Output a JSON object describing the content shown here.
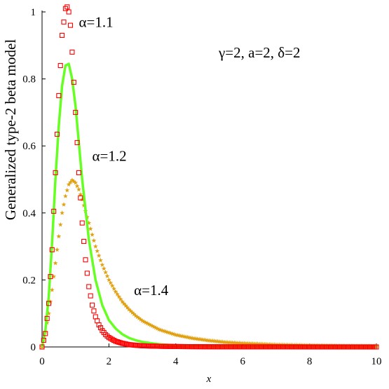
{
  "chart_data": {
    "type": "line",
    "title": "",
    "xlabel": "x",
    "ylabel": "Generalized type-2 beta model",
    "xlim": [
      0,
      10
    ],
    "ylim": [
      0,
      1
    ],
    "xticks": [
      0,
      2,
      4,
      6,
      8,
      10
    ],
    "yticks": [
      0,
      0.2,
      0.4,
      0.6,
      0.8,
      1
    ],
    "grid": false,
    "legend": "none",
    "parameter_note": "γ=2, a=2, δ=2",
    "colors": {
      "alpha_1_1": "#ff0000",
      "alpha_1_2": "#66ff22",
      "alpha_1_4": "#e0a010"
    },
    "series": [
      {
        "name": "α=1.1",
        "style": "square-markers",
        "x": [
          0,
          0.1,
          0.2,
          0.3,
          0.4,
          0.5,
          0.6,
          0.7,
          0.75,
          0.8,
          0.85,
          0.9,
          1.0,
          1.1,
          1.2,
          1.3,
          1.4,
          1.5,
          1.6,
          1.7,
          1.8,
          1.9,
          2.0,
          2.2,
          2.4,
          2.6,
          2.8,
          3.0,
          3.5,
          4.0,
          5.0,
          6.0,
          8.0,
          10.0
        ],
        "values": [
          0,
          0.04,
          0.13,
          0.29,
          0.52,
          0.75,
          0.93,
          1.01,
          1.015,
          1.0,
          0.96,
          0.88,
          0.7,
          0.52,
          0.37,
          0.26,
          0.18,
          0.125,
          0.09,
          0.066,
          0.049,
          0.037,
          0.028,
          0.017,
          0.011,
          0.007,
          0.005,
          0.0035,
          0.002,
          0.0012,
          0.0005,
          0.0002,
          5e-05,
          1e-05
        ]
      },
      {
        "name": "α=1.2",
        "style": "solid-line",
        "x": [
          0,
          0.1,
          0.2,
          0.3,
          0.4,
          0.5,
          0.6,
          0.7,
          0.8,
          0.9,
          1.0,
          1.1,
          1.2,
          1.4,
          1.6,
          1.8,
          2.0,
          2.2,
          2.4,
          2.6,
          2.8,
          3.0,
          3.5,
          4.0,
          5.0,
          6.0,
          8.0,
          10.0
        ],
        "values": [
          0,
          0.05,
          0.15,
          0.31,
          0.5,
          0.66,
          0.78,
          0.84,
          0.845,
          0.8,
          0.72,
          0.61,
          0.5,
          0.32,
          0.2,
          0.125,
          0.08,
          0.055,
          0.038,
          0.027,
          0.02,
          0.015,
          0.008,
          0.0045,
          0.0018,
          0.0008,
          0.0002,
          5e-05
        ]
      },
      {
        "name": "α=1.4",
        "style": "star-markers",
        "x": [
          0,
          0.1,
          0.2,
          0.3,
          0.4,
          0.5,
          0.6,
          0.7,
          0.8,
          0.9,
          1.0,
          1.1,
          1.2,
          1.3,
          1.4,
          1.5,
          1.6,
          1.8,
          2.0,
          2.2,
          2.4,
          2.6,
          2.8,
          3.0,
          3.5,
          4.0,
          4.5,
          5.0,
          5.5,
          6.0,
          7.0,
          8.0,
          9.0,
          10.0
        ],
        "values": [
          0,
          0.045,
          0.1,
          0.17,
          0.25,
          0.33,
          0.4,
          0.45,
          0.485,
          0.498,
          0.49,
          0.47,
          0.44,
          0.405,
          0.37,
          0.335,
          0.3,
          0.245,
          0.2,
          0.165,
          0.135,
          0.112,
          0.093,
          0.078,
          0.052,
          0.036,
          0.026,
          0.019,
          0.014,
          0.011,
          0.0068,
          0.0045,
          0.0031,
          0.0022
        ]
      }
    ],
    "annotations": [
      {
        "text": "α=1.1",
        "x": 1.1,
        "y": 0.955
      },
      {
        "text": "α=1.2",
        "x": 1.5,
        "y": 0.555
      },
      {
        "text": "α=1.4",
        "x": 2.75,
        "y": 0.155
      }
    ]
  }
}
